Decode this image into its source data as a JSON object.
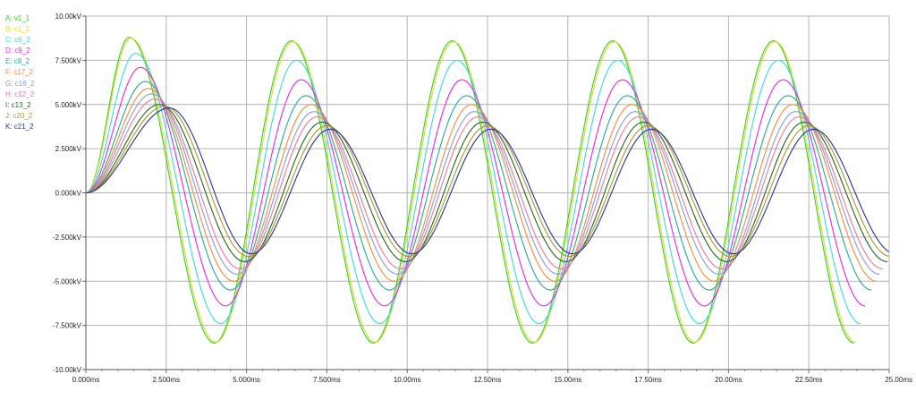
{
  "chart_data": {
    "type": "line",
    "title": "",
    "xlabel": "",
    "ylabel": "",
    "xlim": [
      0,
      25
    ],
    "ylim": [
      -10,
      10
    ],
    "x_unit": "ms",
    "y_unit": "kV",
    "grid": true,
    "legend_position": "left",
    "x_ticks": [
      "0.000ms",
      "2.500ms",
      "5.000ms",
      "7.500ms",
      "10.00ms",
      "12.50ms",
      "15.00ms",
      "17.50ms",
      "20.00ms",
      "22.50ms",
      "25.00ms"
    ],
    "y_ticks": [
      "10.00kV",
      "7.500kV",
      "5.000kV",
      "2.500kV",
      "0.000kV",
      "-2.500kV",
      "-5.000kV",
      "-7.500kV",
      "-10.00kV"
    ],
    "series": [
      {
        "name": "A: v1_1",
        "color": "#33cc33",
        "peak_x": [
          1.35,
          6.4,
          11.4,
          16.4,
          21.4
        ],
        "peak_y": [
          8.8,
          8.6,
          8.6,
          8.6,
          8.6
        ],
        "trough_x": [
          4.0,
          8.95,
          13.9,
          18.9,
          23.9
        ],
        "trough_y": [
          -8.5,
          -8.5,
          -8.5,
          -8.5,
          -8.5
        ],
        "start_y": 0
      },
      {
        "name": "B: c1_2",
        "color": "#dddd22",
        "peak_x": [
          1.4,
          6.45,
          11.45,
          16.45,
          21.45
        ],
        "peak_y": [
          8.75,
          8.55,
          8.55,
          8.55,
          8.55
        ],
        "trough_x": [
          4.05,
          9.0,
          13.95,
          18.95,
          23.95
        ],
        "trough_y": [
          -8.45,
          -8.45,
          -8.45,
          -8.45,
          -8.45
        ],
        "start_y": 0
      },
      {
        "name": "C: c6_2",
        "color": "#33dddd",
        "peak_x": [
          1.55,
          6.55,
          11.55,
          16.55,
          21.55
        ],
        "peak_y": [
          7.9,
          7.5,
          7.5,
          7.5,
          7.5
        ],
        "trough_x": [
          4.2,
          9.15,
          14.1,
          19.1,
          24.1
        ],
        "trough_y": [
          -7.4,
          -7.4,
          -7.4,
          -7.4,
          -7.4
        ],
        "start_y": 0
      },
      {
        "name": "D: c9_2",
        "color": "#ee22ee",
        "peak_x": [
          1.7,
          6.7,
          11.7,
          16.7,
          21.7
        ],
        "peak_y": [
          7.1,
          6.4,
          6.4,
          6.4,
          6.4
        ],
        "trough_x": [
          4.35,
          9.3,
          14.25,
          19.25,
          24.25
        ],
        "trough_y": [
          -6.4,
          -6.4,
          -6.4,
          -6.4,
          -6.4
        ],
        "start_y": 0
      },
      {
        "name": "E: c8_2",
        "color": "#22aa99",
        "peak_x": [
          1.85,
          6.85,
          11.85,
          16.85,
          21.85
        ],
        "peak_y": [
          6.3,
          5.5,
          5.5,
          5.5,
          5.5
        ],
        "trough_x": [
          4.5,
          9.45,
          14.45,
          19.4,
          24.45
        ],
        "trough_y": [
          -5.5,
          -5.5,
          -5.5,
          -5.5,
          -5.5
        ],
        "start_y": 0
      },
      {
        "name": "F: c17_2",
        "color": "#ff8833",
        "peak_x": [
          1.95,
          7.0,
          12.0,
          17.0,
          22.0
        ],
        "peak_y": [
          5.9,
          5.0,
          5.0,
          5.0,
          5.0
        ],
        "trough_x": [
          4.6,
          9.6,
          14.6,
          19.55,
          24.6
        ],
        "trough_y": [
          -5.0,
          -5.0,
          -5.0,
          -5.0,
          -5.0
        ],
        "start_y": 0
      },
      {
        "name": "G: c16_2",
        "color": "#8899dd",
        "peak_x": [
          2.05,
          7.1,
          12.1,
          17.1,
          22.1
        ],
        "peak_y": [
          5.6,
          4.6,
          4.6,
          4.6,
          4.6
        ],
        "trough_x": [
          4.7,
          9.7,
          14.7,
          19.7,
          24.7
        ],
        "trough_y": [
          -4.6,
          -4.6,
          -4.6,
          -4.6,
          -4.6
        ],
        "start_y": 0
      },
      {
        "name": "H: c12_2",
        "color": "#ee7799",
        "peak_x": [
          2.15,
          7.2,
          12.2,
          17.2,
          22.2
        ],
        "peak_y": [
          5.3,
          4.3,
          4.3,
          4.3,
          4.3
        ],
        "trough_x": [
          4.8,
          9.8,
          14.8,
          19.8,
          24.8
        ],
        "trough_y": [
          -4.3,
          -4.3,
          -4.3,
          -4.3,
          -4.3
        ],
        "start_y": 0
      },
      {
        "name": "I: c13_2",
        "color": "#226622",
        "peak_x": [
          2.3,
          7.35,
          12.35,
          17.35,
          22.35
        ],
        "peak_y": [
          5.0,
          4.0,
          4.0,
          4.0,
          4.0
        ],
        "trough_x": [
          4.95,
          9.95,
          14.95,
          19.95,
          24.95
        ],
        "trough_y": [
          -3.9,
          -3.9,
          -3.9,
          -3.9,
          -3.9
        ],
        "start_y": 0
      },
      {
        "name": "J: c20_2",
        "color": "#aa9922",
        "peak_x": [
          2.45,
          7.5,
          12.5,
          17.5,
          22.5
        ],
        "peak_y": [
          4.9,
          3.8,
          3.8,
          3.8,
          3.8
        ],
        "trough_x": [
          5.05,
          10.05,
          15.05,
          20.05,
          25.05
        ],
        "trough_y": [
          -3.6,
          -3.6,
          -3.6,
          -3.6,
          -3.6
        ],
        "start_y": 0
      },
      {
        "name": "K: c21_2",
        "color": "#2233aa",
        "peak_x": [
          2.6,
          7.6,
          12.6,
          17.6,
          22.65
        ],
        "peak_y": [
          4.8,
          3.6,
          3.6,
          3.6,
          3.6
        ],
        "trough_x": [
          5.15,
          10.15,
          15.15,
          20.15,
          25.2
        ],
        "trough_y": [
          -3.45,
          -3.45,
          -3.45,
          -3.45,
          -3.45
        ],
        "start_y": 0
      }
    ]
  }
}
